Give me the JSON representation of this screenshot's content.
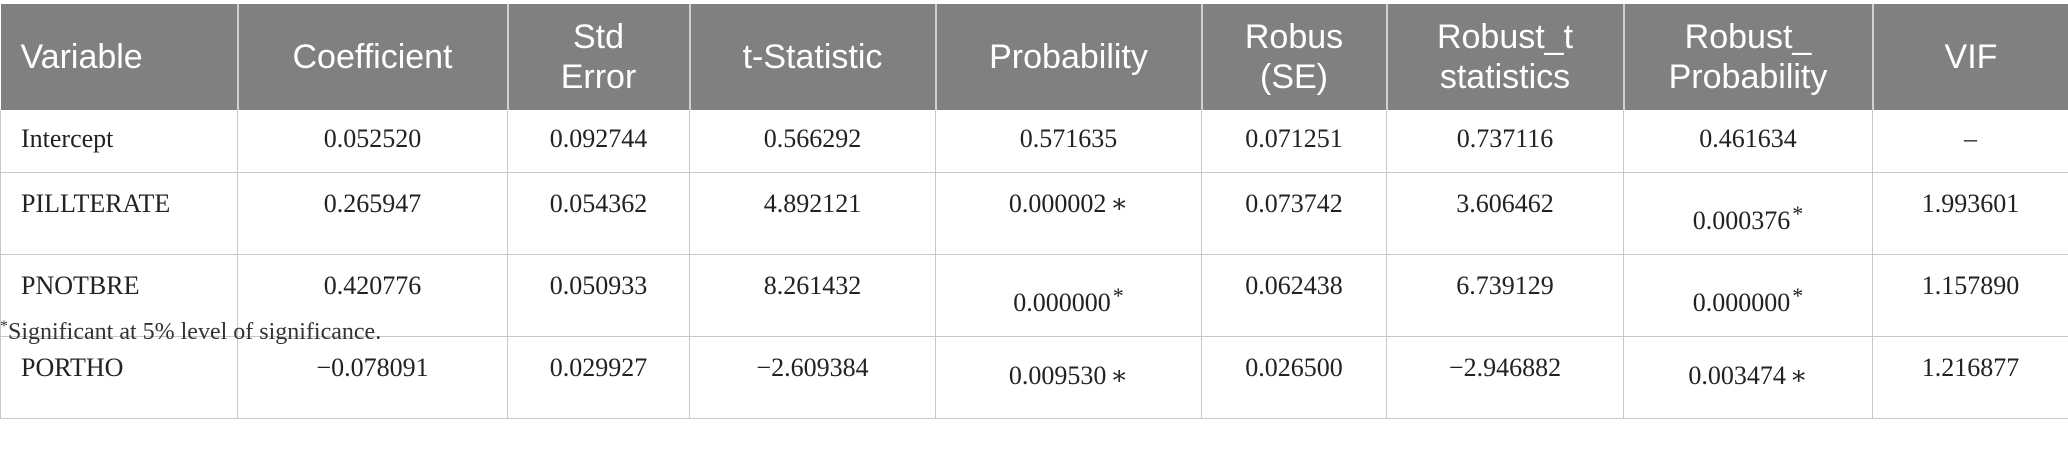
{
  "table": {
    "headers": [
      {
        "line1": "Variable",
        "line2": ""
      },
      {
        "line1": "Coefficient",
        "line2": ""
      },
      {
        "line1": "Std",
        "line2": "Error"
      },
      {
        "line1": "t-Statistic",
        "line2": ""
      },
      {
        "line1": "Probability",
        "line2": ""
      },
      {
        "line1": "Robus",
        "line2": "(SE)"
      },
      {
        "line1": "Robust_t",
        "line2": "statistics"
      },
      {
        "line1": "Robust_",
        "line2": "Probability"
      },
      {
        "line1": "VIF",
        "line2": ""
      }
    ],
    "rows": [
      {
        "variable": "Intercept",
        "coefficient": "0.052520",
        "std_error": "0.092744",
        "t_statistic": "0.566292",
        "probability": "0.571635",
        "probability_mark": "",
        "robust_se": "0.071251",
        "robust_t": "0.737116",
        "robust_probability": "0.461634",
        "robust_probability_mark": "",
        "vif": "–"
      },
      {
        "variable": "PILLTERATE",
        "coefficient": "0.265947",
        "std_error": "0.054362",
        "t_statistic": "4.892121",
        "probability": "0.000002",
        "probability_mark": "∗",
        "robust_se": "0.073742",
        "robust_t": "3.606462",
        "robust_probability": "0.000376",
        "robust_probability_mark": "*",
        "vif": "1.993601"
      },
      {
        "variable": "PNOTBRE",
        "coefficient": "0.420776",
        "std_error": "0.050933",
        "t_statistic": "8.261432",
        "probability": "0.000000",
        "probability_mark": "*",
        "robust_se": "0.062438",
        "robust_t": "6.739129",
        "robust_probability": "0.000000",
        "robust_probability_mark": "*",
        "vif": "1.157890"
      },
      {
        "variable": "PORTHO",
        "coefficient": "−0.078091",
        "std_error": "0.029927",
        "t_statistic": "−2.609384",
        "probability": "0.009530",
        "probability_mark": "∗",
        "robust_se": "0.026500",
        "robust_t": "−2.946882",
        "robust_probability": "0.003474",
        "robust_probability_mark": "∗",
        "vif": "1.216877"
      }
    ]
  },
  "footnote": {
    "mark": "*",
    "text": "Significant at 5% level of significance."
  }
}
